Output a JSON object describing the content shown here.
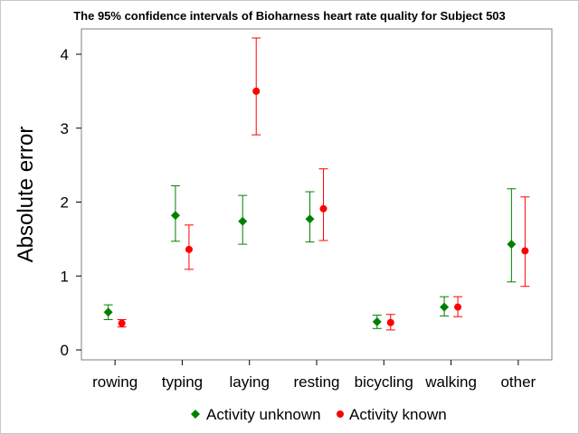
{
  "chart_data": {
    "type": "scatter",
    "title": "The 95% confidence intervals of Bioharness heart rate quality for Subject 503",
    "xlabel": "",
    "ylabel": "Absolute error",
    "ylim": [
      0,
      4.3
    ],
    "yticks": [
      0,
      1,
      2,
      3,
      4
    ],
    "categories": [
      "rowing",
      "typing",
      "laying",
      "resting",
      "bicycling",
      "walking",
      "other"
    ],
    "series": [
      {
        "name": "Activity unknown",
        "color": "#008000",
        "marker": "diamond",
        "values": [
          0.51,
          1.82,
          1.74,
          1.77,
          0.38,
          0.58,
          1.43
        ],
        "lower": [
          0.41,
          1.47,
          1.43,
          1.46,
          0.29,
          0.46,
          0.92
        ],
        "upper": [
          0.61,
          2.22,
          2.09,
          2.14,
          0.47,
          0.72,
          2.18
        ]
      },
      {
        "name": "Activity known",
        "color": "#ff0000",
        "marker": "circle",
        "values": [
          0.36,
          1.36,
          3.5,
          1.91,
          0.37,
          0.58,
          1.34
        ],
        "lower": [
          0.31,
          1.09,
          2.91,
          1.48,
          0.27,
          0.45,
          0.86
        ],
        "upper": [
          0.41,
          1.69,
          4.22,
          2.45,
          0.48,
          0.72,
          2.07
        ]
      }
    ],
    "legend_position": "bottom",
    "grid": false
  }
}
